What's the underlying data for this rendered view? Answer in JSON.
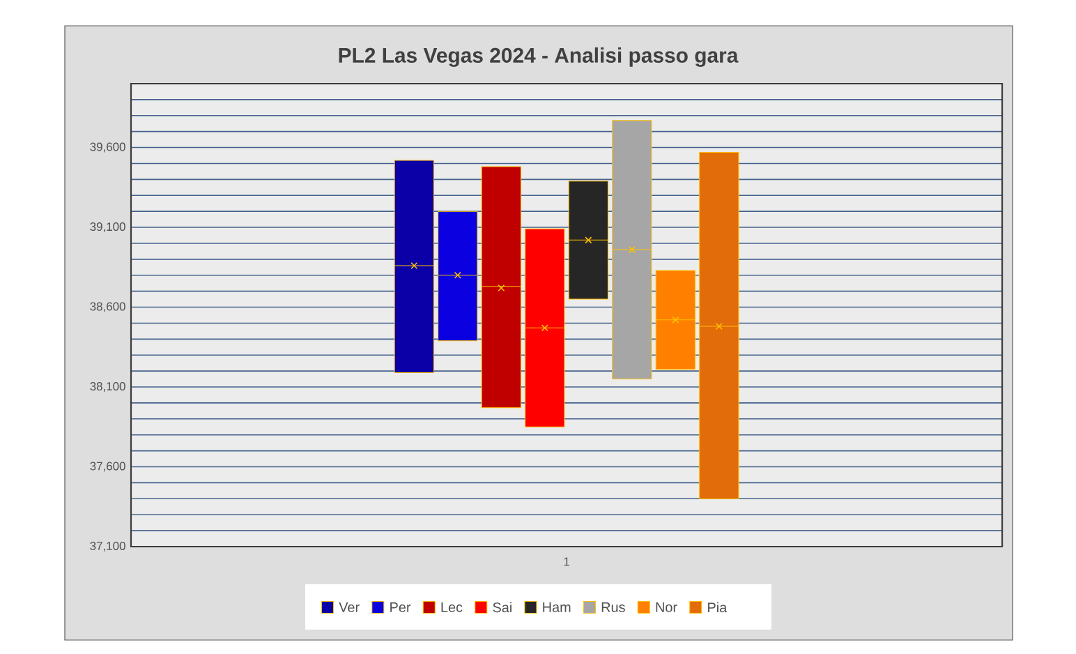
{
  "chart_data": {
    "type": "box",
    "title": "PL2 Las Vegas 2024 - Analisi passo gara",
    "categories": [
      "1"
    ],
    "series": [
      {
        "name": "Ver",
        "color": "#0b00a8",
        "boxes": [
          {
            "low": 38190,
            "q1": 38190,
            "median": 38860,
            "q3": 39520,
            "high": 39520,
            "mean": 38860
          }
        ]
      },
      {
        "name": "Per",
        "color": "#0a00e0",
        "boxes": [
          {
            "low": 38390,
            "q1": 38390,
            "median": 38800,
            "q3": 39200,
            "high": 39200,
            "mean": 38800
          }
        ]
      },
      {
        "name": "Lec",
        "color": "#c00000",
        "boxes": [
          {
            "low": 37970,
            "q1": 37970,
            "median": 38730,
            "q3": 39480,
            "high": 39480,
            "mean": 38720
          }
        ]
      },
      {
        "name": "Sai",
        "color": "#ff0000",
        "boxes": [
          {
            "low": 37850,
            "q1": 37850,
            "median": 38470,
            "q3": 39090,
            "high": 39090,
            "mean": 38470
          }
        ]
      },
      {
        "name": "Ham",
        "color": "#262626",
        "boxes": [
          {
            "low": 38650,
            "q1": 38650,
            "median": 39020,
            "q3": 39390,
            "high": 39390,
            "mean": 39020
          }
        ]
      },
      {
        "name": "Rus",
        "color": "#a6a6a6",
        "boxes": [
          {
            "low": 38150,
            "q1": 38150,
            "median": 38960,
            "q3": 39770,
            "high": 39770,
            "mean": 38960
          }
        ]
      },
      {
        "name": "Nor",
        "color": "#ff8000",
        "boxes": [
          {
            "low": 38210,
            "q1": 38210,
            "median": 38520,
            "q3": 38830,
            "high": 38830,
            "mean": 38520
          }
        ]
      },
      {
        "name": "Pia",
        "color": "#e36c0a",
        "boxes": [
          {
            "low": 37400,
            "q1": 37400,
            "median": 38480,
            "q3": 39570,
            "high": 39570,
            "mean": 38480
          }
        ]
      }
    ],
    "ylim": [
      37100,
      40000
    ],
    "yticks": [
      {
        "value": 37100,
        "label": "37,100"
      },
      {
        "value": 37200,
        "label": null
      },
      {
        "value": 37300,
        "label": null
      },
      {
        "value": 37400,
        "label": null
      },
      {
        "value": 37500,
        "label": null
      },
      {
        "value": 37600,
        "label": "37,600"
      },
      {
        "value": 37700,
        "label": null
      },
      {
        "value": 37800,
        "label": null
      },
      {
        "value": 37900,
        "label": null
      },
      {
        "value": 38000,
        "label": null
      },
      {
        "value": 38100,
        "label": "38,100"
      },
      {
        "value": 38200,
        "label": null
      },
      {
        "value": 38300,
        "label": null
      },
      {
        "value": 38400,
        "label": null
      },
      {
        "value": 38500,
        "label": null
      },
      {
        "value": 38600,
        "label": "38,600"
      },
      {
        "value": 38700,
        "label": null
      },
      {
        "value": 38800,
        "label": null
      },
      {
        "value": 38900,
        "label": null
      },
      {
        "value": 39000,
        "label": null
      },
      {
        "value": 39100,
        "label": "39,100"
      },
      {
        "value": 39200,
        "label": null
      },
      {
        "value": 39300,
        "label": null
      },
      {
        "value": 39400,
        "label": null
      },
      {
        "value": 39500,
        "label": null
      },
      {
        "value": 39600,
        "label": "39,600"
      },
      {
        "value": 39700,
        "label": null
      },
      {
        "value": 39800,
        "label": null
      },
      {
        "value": 39900,
        "label": null
      },
      {
        "value": 40000,
        "label": null
      }
    ],
    "grid": "y",
    "legend": "bottom",
    "marker": "cross"
  }
}
